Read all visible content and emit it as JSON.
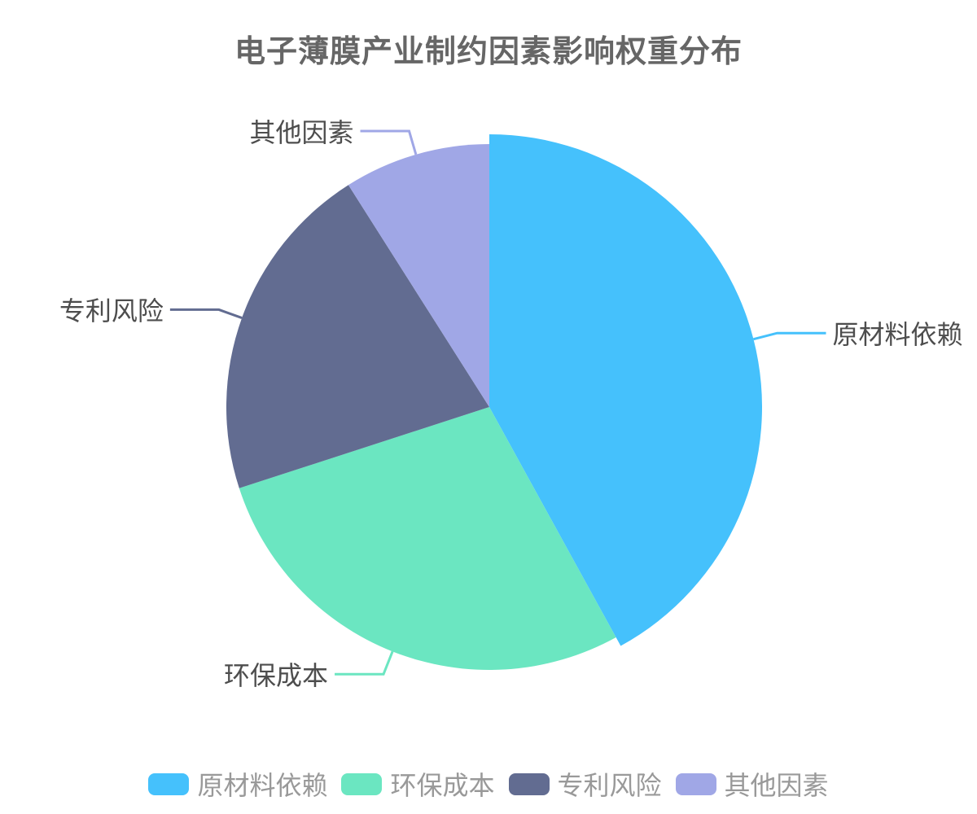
{
  "title": "电子薄膜产业制约因素影响权重分布",
  "chart_data": {
    "type": "pie",
    "title": "电子薄膜产业制约因素影响权重分布",
    "values_are_percent": true,
    "start_angle_deg": 0,
    "clockwise": true,
    "legend_position": "bottom",
    "label_lines": true,
    "background_color": "#ffffff",
    "title_color": "#666666",
    "label_color": "#4d4d4d",
    "legend_text_color": "#999999",
    "slices": [
      {
        "id": "raw-material-dependence",
        "label": "原材料依赖",
        "value": 42,
        "color": "#45c1fc",
        "emphasized": true
      },
      {
        "id": "environmental-cost",
        "label": "环保成本",
        "value": 28,
        "color": "#6be6c1",
        "emphasized": false
      },
      {
        "id": "patent-risk",
        "label": "专利风险",
        "value": 21,
        "color": "#626c91",
        "emphasized": false
      },
      {
        "id": "other-factors",
        "label": "其他因素",
        "value": 9,
        "color": "#a0a7e6",
        "emphasized": false
      }
    ]
  }
}
